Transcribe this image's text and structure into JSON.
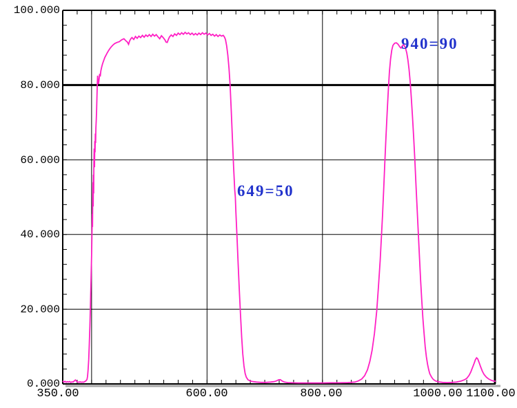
{
  "chart_data": {
    "type": "line",
    "title": "",
    "xlabel": "",
    "ylabel": "",
    "x_range": [
      350,
      1100
    ],
    "y_range": [
      0,
      100
    ],
    "x_gridlines": [
      400,
      600,
      800,
      1000
    ],
    "y_gridlines": [
      20,
      40,
      60
    ],
    "marker_line_y": 80,
    "x_minor_tick_step": 25,
    "y_minor_tick_step": 4,
    "grid_color": "#000000",
    "curve_color": "#ff1fc4",
    "annotation_color": "#2233cc",
    "axis_shadow_color": "#a6a6a6",
    "x_tick_labels": [
      {
        "value": 350,
        "label": "350.00"
      },
      {
        "value": 600,
        "label": "600.00"
      },
      {
        "value": 800,
        "label": "800.00"
      },
      {
        "value": 1000,
        "label": "1000.00"
      },
      {
        "value": 1100,
        "label": "1100.00"
      }
    ],
    "y_tick_labels": [
      {
        "value": 100,
        "label": "100.000"
      },
      {
        "value": 80,
        "label": "80.000"
      },
      {
        "value": 60,
        "label": "60.000"
      },
      {
        "value": 40,
        "label": "40.000"
      },
      {
        "value": 20,
        "label": "20.000"
      },
      {
        "value": 0,
        "label": "0.000"
      }
    ],
    "annotations": [
      {
        "text": "649=50",
        "wavelength_nm": 649,
        "transmittance_pct": 50
      },
      {
        "text": "940=90",
        "wavelength_nm": 940,
        "transmittance_pct": 90
      }
    ],
    "series": [
      {
        "name": "transmittance-percent-vs-wavelength-nm",
        "color": "#ff1fc4",
        "points": [
          [
            350,
            0.8
          ],
          [
            352,
            0.5
          ],
          [
            354,
            0.7
          ],
          [
            356,
            0.45
          ],
          [
            358,
            0.6
          ],
          [
            360,
            0.5
          ],
          [
            362,
            0.65
          ],
          [
            364,
            0.4
          ],
          [
            366,
            0.55
          ],
          [
            368,
            0.5
          ],
          [
            370,
            0.8
          ],
          [
            372,
            1.05
          ],
          [
            374,
            0.7
          ],
          [
            376,
            0.5
          ],
          [
            378,
            0.45
          ],
          [
            380,
            0.55
          ],
          [
            382,
            0.45
          ],
          [
            384,
            0.5
          ],
          [
            386,
            0.45
          ],
          [
            388,
            0.6
          ],
          [
            390,
            0.8
          ],
          [
            392,
            1.2
          ],
          [
            393,
            2
          ],
          [
            394,
            3.8
          ],
          [
            395,
            6.5
          ],
          [
            396,
            10.5
          ],
          [
            397,
            15.5
          ],
          [
            398,
            21
          ],
          [
            399,
            27.5
          ],
          [
            400,
            34.5
          ],
          [
            400.6,
            40
          ],
          [
            401.2,
            45.5
          ],
          [
            401.6,
            42
          ],
          [
            402,
            49
          ],
          [
            402.4,
            54
          ],
          [
            402.8,
            47.5
          ],
          [
            403.2,
            56
          ],
          [
            403.6,
            51
          ],
          [
            404,
            59
          ],
          [
            404.5,
            63
          ],
          [
            405,
            58
          ],
          [
            405.5,
            65
          ],
          [
            406,
            62
          ],
          [
            406.5,
            67
          ],
          [
            407,
            64.5
          ],
          [
            407.5,
            68.5
          ],
          [
            408,
            70.5
          ],
          [
            408.6,
            73
          ],
          [
            409.2,
            76.5
          ],
          [
            409.8,
            80
          ],
          [
            410.4,
            82.5
          ],
          [
            411.2,
            81
          ],
          [
            412,
            80.3
          ],
          [
            413,
            81.6
          ],
          [
            414,
            83
          ],
          [
            415,
            82.3
          ],
          [
            416,
            83.8
          ],
          [
            417.5,
            84.8
          ],
          [
            419,
            85.7
          ],
          [
            421,
            86.6
          ],
          [
            423,
            87.4
          ],
          [
            425,
            88
          ],
          [
            427,
            88.6
          ],
          [
            429,
            89.1
          ],
          [
            431,
            89.6
          ],
          [
            434,
            90.2
          ],
          [
            437,
            90.7
          ],
          [
            440,
            91.1
          ],
          [
            444,
            91.4
          ],
          [
            448,
            91.6
          ],
          [
            452,
            92.1
          ],
          [
            456,
            92.4
          ],
          [
            459,
            91.9
          ],
          [
            462,
            91.5
          ],
          [
            464,
            90.9
          ],
          [
            466,
            91.8
          ],
          [
            468,
            92.4
          ],
          [
            470,
            92.7
          ],
          [
            473,
            92.2
          ],
          [
            476,
            93
          ],
          [
            479,
            92.5
          ],
          [
            482,
            93.1
          ],
          [
            485,
            92.7
          ],
          [
            488,
            93.3
          ],
          [
            491,
            92.8
          ],
          [
            494,
            93.4
          ],
          [
            497,
            93
          ],
          [
            500,
            93.5
          ],
          [
            503,
            93
          ],
          [
            506,
            93.6
          ],
          [
            509,
            93.1
          ],
          [
            512,
            93.5
          ],
          [
            515,
            92.9
          ],
          [
            518,
            92.4
          ],
          [
            521,
            93.2
          ],
          [
            524,
            92.7
          ],
          [
            527,
            92.1
          ],
          [
            529,
            91.5
          ],
          [
            531,
            91.4
          ],
          [
            533,
            92.2
          ],
          [
            535,
            92.9
          ],
          [
            538,
            93.4
          ],
          [
            541,
            93
          ],
          [
            544,
            93.7
          ],
          [
            547,
            93.3
          ],
          [
            550,
            93.9
          ],
          [
            553,
            93.5
          ],
          [
            556,
            94
          ],
          [
            559,
            93.6
          ],
          [
            562,
            94.1
          ],
          [
            565,
            93.7
          ],
          [
            568,
            94
          ],
          [
            571,
            93.5
          ],
          [
            574,
            93.9
          ],
          [
            577,
            93.4
          ],
          [
            580,
            93.8
          ],
          [
            583,
            93.4
          ],
          [
            586,
            93.9
          ],
          [
            589,
            93.5
          ],
          [
            592,
            94
          ],
          [
            595,
            93.6
          ],
          [
            598,
            93.9
          ],
          [
            601,
            93.4
          ],
          [
            604,
            93.8
          ],
          [
            607,
            93.3
          ],
          [
            610,
            93.6
          ],
          [
            613,
            93.1
          ],
          [
            616,
            93.5
          ],
          [
            619,
            93
          ],
          [
            622,
            93.4
          ],
          [
            625,
            93.1
          ],
          [
            628,
            93.3
          ],
          [
            630,
            92.9
          ],
          [
            632,
            92.2
          ],
          [
            634,
            90.5
          ],
          [
            636,
            88
          ],
          [
            638,
            84.5
          ],
          [
            640,
            80
          ],
          [
            642,
            73
          ],
          [
            644,
            65.5
          ],
          [
            646,
            58
          ],
          [
            648,
            52
          ],
          [
            649,
            50
          ],
          [
            650,
            46
          ],
          [
            652,
            39
          ],
          [
            654,
            32
          ],
          [
            656,
            25
          ],
          [
            658,
            18.5
          ],
          [
            660,
            12.5
          ],
          [
            662,
            8
          ],
          [
            664,
            4.8
          ],
          [
            666,
            2.8
          ],
          [
            668,
            1.8
          ],
          [
            671,
            1.1
          ],
          [
            675,
            0.8
          ],
          [
            680,
            0.6
          ],
          [
            686,
            0.5
          ],
          [
            694,
            0.4
          ],
          [
            702,
            0.4
          ],
          [
            710,
            0.5
          ],
          [
            716,
            0.6
          ],
          [
            720,
            0.8
          ],
          [
            724,
            1.1
          ],
          [
            727,
            1.15
          ],
          [
            730,
            0.8
          ],
          [
            734,
            0.5
          ],
          [
            740,
            0.35
          ],
          [
            748,
            0.3
          ],
          [
            758,
            0.25
          ],
          [
            770,
            0.25
          ],
          [
            784,
            0.25
          ],
          [
            800,
            0.25
          ],
          [
            815,
            0.3
          ],
          [
            830,
            0.3
          ],
          [
            844,
            0.35
          ],
          [
            856,
            0.5
          ],
          [
            862,
            0.8
          ],
          [
            868,
            1.3
          ],
          [
            873,
            2.2
          ],
          [
            878,
            3.8
          ],
          [
            882,
            6
          ],
          [
            886,
            9
          ],
          [
            890,
            13.5
          ],
          [
            894,
            19.5
          ],
          [
            897,
            26
          ],
          [
            900,
            33
          ],
          [
            902,
            39
          ],
          [
            904,
            45
          ],
          [
            906,
            52
          ],
          [
            908,
            59
          ],
          [
            910,
            66
          ],
          [
            912,
            72.5
          ],
          [
            914,
            78.5
          ],
          [
            916,
            83.5
          ],
          [
            918,
            87
          ],
          [
            920,
            89.3
          ],
          [
            922,
            90.6
          ],
          [
            925,
            91.2
          ],
          [
            928,
            91.3
          ],
          [
            931,
            90.9
          ],
          [
            934,
            90.2
          ],
          [
            936,
            89.9
          ],
          [
            938,
            90.4
          ],
          [
            940,
            90.8
          ],
          [
            942,
            90.5
          ],
          [
            944,
            89.8
          ],
          [
            946,
            88.6
          ],
          [
            948,
            86.8
          ],
          [
            950,
            84.2
          ],
          [
            952,
            80.8
          ],
          [
            954,
            76.5
          ],
          [
            956,
            71.5
          ],
          [
            958,
            66
          ],
          [
            960,
            60
          ],
          [
            962,
            53.5
          ],
          [
            964,
            47
          ],
          [
            966,
            40.5
          ],
          [
            968,
            34
          ],
          [
            970,
            28
          ],
          [
            972,
            22.5
          ],
          [
            974,
            17.5
          ],
          [
            976,
            13.5
          ],
          [
            978,
            10
          ],
          [
            980,
            7.3
          ],
          [
            982,
            5.3
          ],
          [
            984,
            3.8
          ],
          [
            986,
            2.7
          ],
          [
            989,
            1.8
          ],
          [
            992,
            1.2
          ],
          [
            996,
            0.8
          ],
          [
            1001,
            0.55
          ],
          [
            1008,
            0.4
          ],
          [
            1016,
            0.35
          ],
          [
            1024,
            0.4
          ],
          [
            1032,
            0.5
          ],
          [
            1040,
            0.75
          ],
          [
            1046,
            1.1
          ],
          [
            1050,
            1.5
          ],
          [
            1054,
            2.3
          ],
          [
            1057,
            3.2
          ],
          [
            1060,
            4.4
          ],
          [
            1063,
            5.6
          ],
          [
            1065,
            6.5
          ],
          [
            1067,
            7
          ],
          [
            1069,
            6.7
          ],
          [
            1071,
            5.9
          ],
          [
            1074,
            4.6
          ],
          [
            1077,
            3.4
          ],
          [
            1080,
            2.5
          ],
          [
            1084,
            1.8
          ],
          [
            1088,
            1.3
          ],
          [
            1092,
            1
          ],
          [
            1096,
            0.8
          ],
          [
            1100,
            0.7
          ]
        ]
      }
    ]
  }
}
